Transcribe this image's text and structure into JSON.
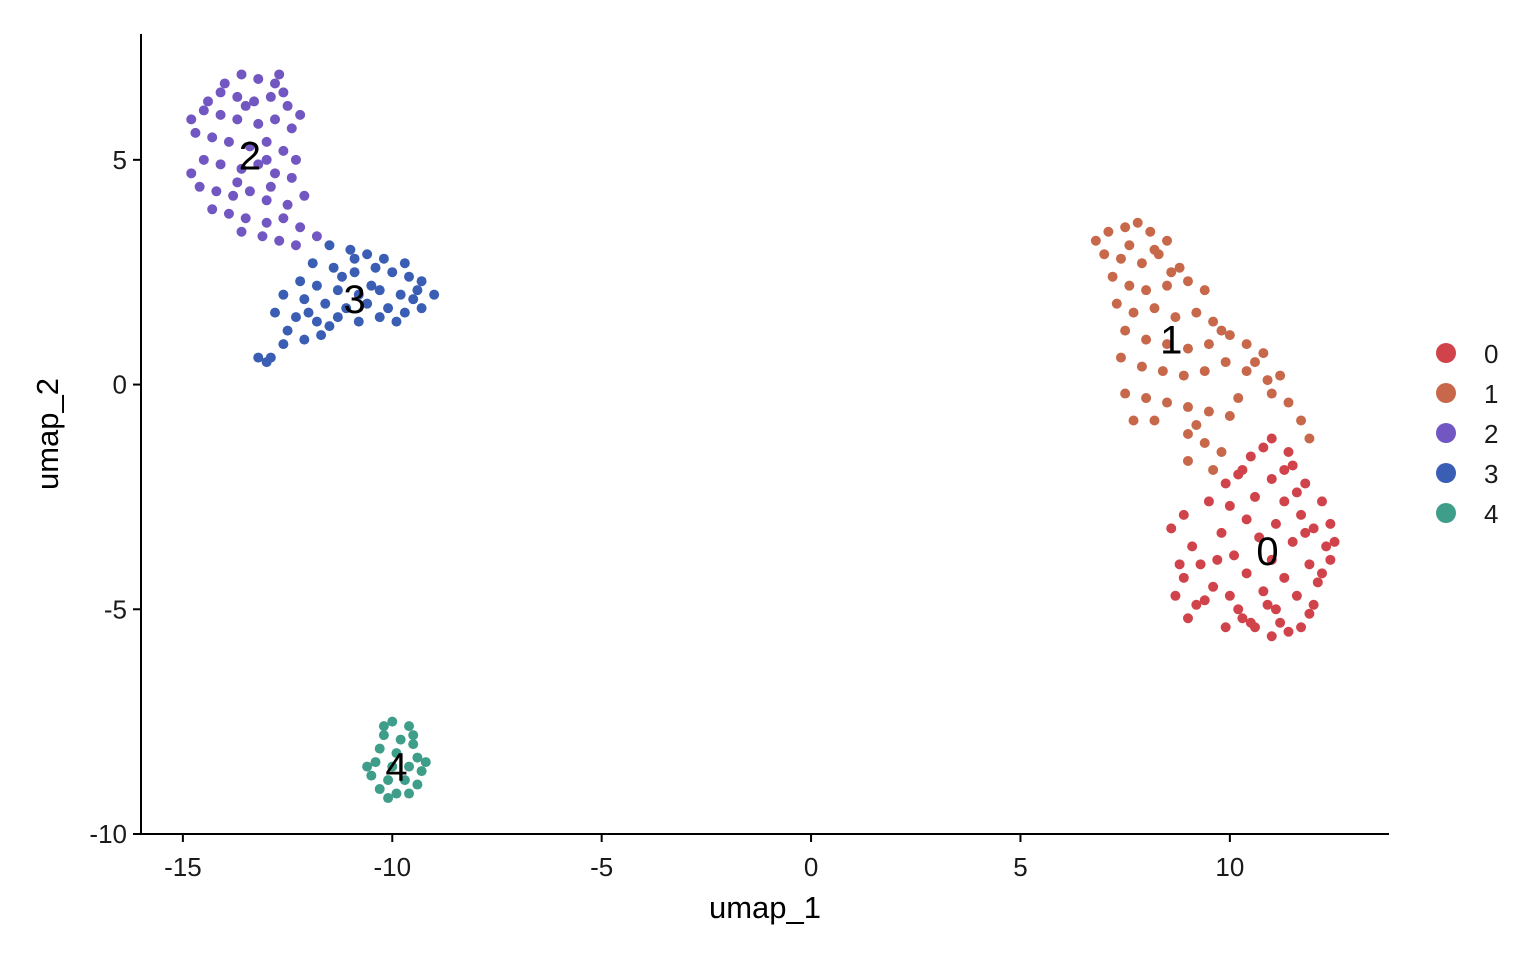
{
  "chart_data": {
    "type": "scatter",
    "title": "",
    "xlabel": "umap_1",
    "ylabel": "umap_2",
    "xlim": [
      -16,
      13.8
    ],
    "ylim": [
      -10,
      7.8
    ],
    "xticks": [
      -15,
      -10,
      -5,
      0,
      5,
      10
    ],
    "xtick_labels": [
      "-15",
      "-10",
      "-5",
      "0",
      "5",
      "10"
    ],
    "yticks": [
      5,
      0,
      -5,
      -10
    ],
    "ytick_labels": [
      "5",
      "0",
      "-5",
      "-10"
    ],
    "grid": false,
    "legend_position": "right",
    "series": [
      {
        "name": "0",
        "color": "#D1434B",
        "label_pos": [
          10.9,
          -3.7
        ],
        "points": [
          [
            11.0,
            -1.2
          ],
          [
            10.5,
            -1.6
          ],
          [
            11.4,
            -1.5
          ],
          [
            10.2,
            -2.0
          ],
          [
            11.0,
            -2.1
          ],
          [
            11.8,
            -2.2
          ],
          [
            10.6,
            -2.5
          ],
          [
            11.3,
            -2.6
          ],
          [
            10.0,
            -2.7
          ],
          [
            11.7,
            -2.9
          ],
          [
            10.4,
            -3.0
          ],
          [
            11.1,
            -3.1
          ],
          [
            12.0,
            -3.2
          ],
          [
            9.8,
            -3.3
          ],
          [
            10.7,
            -3.4
          ],
          [
            11.5,
            -3.5
          ],
          [
            12.3,
            -3.6
          ],
          [
            10.1,
            -3.8
          ],
          [
            11.0,
            -3.9
          ],
          [
            11.9,
            -4.0
          ],
          [
            9.3,
            -4.0
          ],
          [
            10.4,
            -4.2
          ],
          [
            11.3,
            -4.3
          ],
          [
            12.1,
            -4.4
          ],
          [
            8.9,
            -4.3
          ],
          [
            9.6,
            -4.5
          ],
          [
            10.8,
            -4.6
          ],
          [
            11.6,
            -4.7
          ],
          [
            8.7,
            -4.7
          ],
          [
            9.2,
            -4.9
          ],
          [
            10.2,
            -5.0
          ],
          [
            11.1,
            -5.0
          ],
          [
            11.9,
            -5.1
          ],
          [
            9.0,
            -5.2
          ],
          [
            9.9,
            -5.4
          ],
          [
            10.6,
            -5.4
          ],
          [
            11.4,
            -5.5
          ],
          [
            10.3,
            -5.2
          ],
          [
            11.0,
            -5.6
          ],
          [
            11.7,
            -5.4
          ],
          [
            12.4,
            -3.1
          ],
          [
            12.2,
            -2.6
          ],
          [
            11.5,
            -1.8
          ],
          [
            10.8,
            -1.4
          ],
          [
            9.5,
            -2.6
          ],
          [
            9.1,
            -3.6
          ],
          [
            8.6,
            -3.2
          ],
          [
            12.0,
            -4.9
          ],
          [
            11.2,
            -5.3
          ],
          [
            10.0,
            -4.7
          ],
          [
            8.9,
            -2.9
          ],
          [
            12.5,
            -3.5
          ],
          [
            11.6,
            -2.4
          ],
          [
            10.3,
            -1.9
          ],
          [
            9.7,
            -3.9
          ],
          [
            10.9,
            -4.9
          ],
          [
            12.2,
            -4.2
          ],
          [
            11.8,
            -3.3
          ],
          [
            10.5,
            -5.3
          ],
          [
            9.4,
            -4.8
          ],
          [
            8.8,
            -4.0
          ],
          [
            11.3,
            -1.9
          ],
          [
            12.4,
            -3.9
          ],
          [
            9.9,
            -2.2
          ]
        ]
      },
      {
        "name": "1",
        "color": "#C8684B",
        "label_pos": [
          8.6,
          1.0
        ],
        "points": [
          [
            6.8,
            3.2
          ],
          [
            7.1,
            3.4
          ],
          [
            7.5,
            3.5
          ],
          [
            7.8,
            3.6
          ],
          [
            8.1,
            3.4
          ],
          [
            8.5,
            3.2
          ],
          [
            7.0,
            2.9
          ],
          [
            7.4,
            2.8
          ],
          [
            7.9,
            2.7
          ],
          [
            8.3,
            2.9
          ],
          [
            8.8,
            2.6
          ],
          [
            7.2,
            2.4
          ],
          [
            7.6,
            2.2
          ],
          [
            8.0,
            2.1
          ],
          [
            8.5,
            2.2
          ],
          [
            9.0,
            2.3
          ],
          [
            9.4,
            2.1
          ],
          [
            7.3,
            1.8
          ],
          [
            7.7,
            1.6
          ],
          [
            8.2,
            1.7
          ],
          [
            8.7,
            1.5
          ],
          [
            9.2,
            1.6
          ],
          [
            9.6,
            1.4
          ],
          [
            7.5,
            1.2
          ],
          [
            8.0,
            1.0
          ],
          [
            8.5,
            0.9
          ],
          [
            9.0,
            0.8
          ],
          [
            9.5,
            0.9
          ],
          [
            10.0,
            1.1
          ],
          [
            10.4,
            0.9
          ],
          [
            10.8,
            0.7
          ],
          [
            7.4,
            0.6
          ],
          [
            7.9,
            0.4
          ],
          [
            8.4,
            0.3
          ],
          [
            8.9,
            0.2
          ],
          [
            9.4,
            0.3
          ],
          [
            9.9,
            0.5
          ],
          [
            10.4,
            0.3
          ],
          [
            10.9,
            0.1
          ],
          [
            7.5,
            -0.2
          ],
          [
            8.0,
            -0.3
          ],
          [
            8.5,
            -0.4
          ],
          [
            9.0,
            -0.5
          ],
          [
            9.5,
            -0.6
          ],
          [
            10.0,
            -0.7
          ],
          [
            11.0,
            -0.2
          ],
          [
            11.4,
            -0.4
          ],
          [
            11.7,
            -0.8
          ],
          [
            11.9,
            -1.2
          ],
          [
            9.0,
            -1.1
          ],
          [
            9.4,
            -1.3
          ],
          [
            9.8,
            -1.5
          ],
          [
            9.0,
            -1.7
          ],
          [
            9.6,
            -1.9
          ],
          [
            7.7,
            -0.8
          ],
          [
            8.2,
            3.0
          ],
          [
            7.6,
            3.1
          ],
          [
            8.6,
            2.5
          ],
          [
            9.8,
            1.2
          ],
          [
            10.6,
            0.5
          ],
          [
            11.2,
            0.2
          ],
          [
            8.2,
            -0.8
          ],
          [
            9.2,
            -0.9
          ],
          [
            10.2,
            -0.3
          ]
        ]
      },
      {
        "name": "2",
        "color": "#7256C1",
        "label_pos": [
          -13.4,
          5.1
        ],
        "points": [
          [
            -13.6,
            6.9
          ],
          [
            -13.2,
            6.8
          ],
          [
            -12.8,
            6.7
          ],
          [
            -14.1,
            6.5
          ],
          [
            -13.7,
            6.4
          ],
          [
            -13.3,
            6.3
          ],
          [
            -12.9,
            6.4
          ],
          [
            -12.5,
            6.2
          ],
          [
            -14.5,
            6.1
          ],
          [
            -14.1,
            6.0
          ],
          [
            -13.7,
            5.9
          ],
          [
            -13.2,
            5.8
          ],
          [
            -12.8,
            5.9
          ],
          [
            -12.4,
            5.7
          ],
          [
            -14.7,
            5.6
          ],
          [
            -14.3,
            5.5
          ],
          [
            -13.9,
            5.4
          ],
          [
            -13.4,
            5.3
          ],
          [
            -13.0,
            5.4
          ],
          [
            -12.6,
            5.2
          ],
          [
            -14.5,
            5.0
          ],
          [
            -14.1,
            4.9
          ],
          [
            -13.6,
            4.8
          ],
          [
            -13.2,
            4.9
          ],
          [
            -12.8,
            4.7
          ],
          [
            -12.4,
            4.6
          ],
          [
            -14.6,
            4.4
          ],
          [
            -14.2,
            4.3
          ],
          [
            -13.8,
            4.2
          ],
          [
            -13.4,
            4.3
          ],
          [
            -13.0,
            4.1
          ],
          [
            -12.5,
            4.0
          ],
          [
            -12.1,
            4.2
          ],
          [
            -14.3,
            3.9
          ],
          [
            -13.9,
            3.8
          ],
          [
            -13.5,
            3.7
          ],
          [
            -13.0,
            3.6
          ],
          [
            -12.6,
            3.7
          ],
          [
            -12.2,
            3.5
          ],
          [
            -11.8,
            3.3
          ],
          [
            -13.6,
            3.4
          ],
          [
            -13.1,
            3.3
          ],
          [
            -12.7,
            3.2
          ],
          [
            -12.3,
            3.1
          ],
          [
            -14.0,
            6.7
          ],
          [
            -12.7,
            6.9
          ],
          [
            -14.8,
            5.9
          ],
          [
            -12.2,
            6.0
          ],
          [
            -12.3,
            5.0
          ],
          [
            -14.8,
            4.7
          ],
          [
            -13.5,
            6.2
          ],
          [
            -13.0,
            5.0
          ],
          [
            -12.9,
            4.4
          ],
          [
            -13.7,
            4.5
          ],
          [
            -14.4,
            6.3
          ],
          [
            -12.6,
            6.5
          ]
        ]
      },
      {
        "name": "3",
        "color": "#3A5EB3",
        "label_pos": [
          -10.9,
          1.9
        ],
        "points": [
          [
            -11.5,
            3.1
          ],
          [
            -11.0,
            3.0
          ],
          [
            -10.6,
            2.9
          ],
          [
            -10.2,
            2.8
          ],
          [
            -11.9,
            2.7
          ],
          [
            -11.4,
            2.6
          ],
          [
            -10.9,
            2.5
          ],
          [
            -10.4,
            2.6
          ],
          [
            -10.0,
            2.5
          ],
          [
            -9.6,
            2.4
          ],
          [
            -9.3,
            2.3
          ],
          [
            -12.2,
            2.3
          ],
          [
            -11.8,
            2.2
          ],
          [
            -11.3,
            2.1
          ],
          [
            -10.8,
            2.0
          ],
          [
            -10.3,
            2.1
          ],
          [
            -9.8,
            2.0
          ],
          [
            -9.4,
            2.1
          ],
          [
            -9.0,
            2.0
          ],
          [
            -12.6,
            2.0
          ],
          [
            -12.1,
            1.9
          ],
          [
            -11.6,
            1.8
          ],
          [
            -11.1,
            1.7
          ],
          [
            -10.6,
            1.8
          ],
          [
            -10.1,
            1.7
          ],
          [
            -9.7,
            1.6
          ],
          [
            -9.3,
            1.7
          ],
          [
            -12.8,
            1.6
          ],
          [
            -12.3,
            1.5
          ],
          [
            -11.8,
            1.4
          ],
          [
            -11.3,
            1.5
          ],
          [
            -10.8,
            1.4
          ],
          [
            -10.3,
            1.5
          ],
          [
            -9.9,
            1.4
          ],
          [
            -12.5,
            1.2
          ],
          [
            -12.1,
            1.0
          ],
          [
            -12.6,
            0.9
          ],
          [
            -12.9,
            0.6
          ],
          [
            -13.2,
            0.6
          ],
          [
            -13.0,
            0.5
          ],
          [
            -11.7,
            1.1
          ],
          [
            -10.5,
            2.2
          ],
          [
            -9.7,
            2.7
          ],
          [
            -11.2,
            2.4
          ],
          [
            -12.0,
            1.6
          ],
          [
            -9.5,
            1.9
          ],
          [
            -10.9,
            2.8
          ],
          [
            -11.5,
            1.3
          ]
        ]
      },
      {
        "name": "4",
        "color": "#3F9E8A",
        "label_pos": [
          -9.9,
          -8.5
        ],
        "points": [
          [
            -10.0,
            -7.5
          ],
          [
            -9.6,
            -7.6
          ],
          [
            -10.2,
            -7.8
          ],
          [
            -9.8,
            -7.9
          ],
          [
            -9.5,
            -8.0
          ],
          [
            -10.3,
            -8.1
          ],
          [
            -9.9,
            -8.2
          ],
          [
            -9.4,
            -8.3
          ],
          [
            -10.4,
            -8.4
          ],
          [
            -10.0,
            -8.5
          ],
          [
            -9.6,
            -8.5
          ],
          [
            -9.3,
            -8.6
          ],
          [
            -10.5,
            -8.7
          ],
          [
            -10.1,
            -8.8
          ],
          [
            -9.7,
            -8.8
          ],
          [
            -9.4,
            -8.9
          ],
          [
            -10.3,
            -9.0
          ],
          [
            -9.9,
            -9.1
          ],
          [
            -9.6,
            -9.1
          ],
          [
            -10.1,
            -9.2
          ],
          [
            -10.2,
            -7.6
          ],
          [
            -9.5,
            -7.8
          ],
          [
            -10.6,
            -8.5
          ],
          [
            -9.2,
            -8.4
          ]
        ]
      }
    ]
  }
}
